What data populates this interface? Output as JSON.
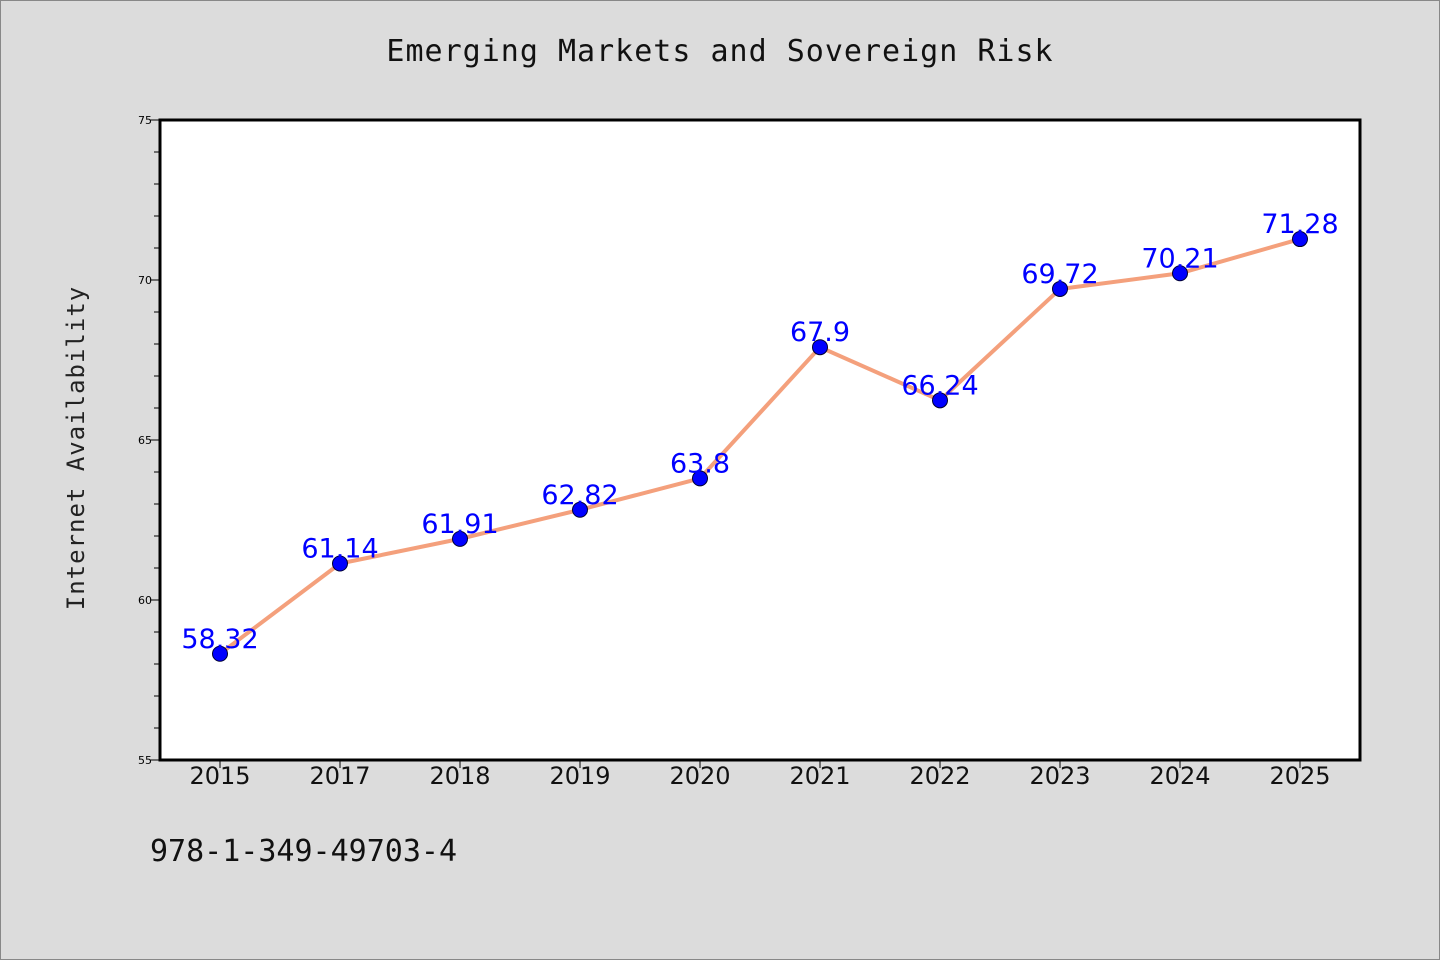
{
  "title": "Emerging Markets and Sovereign Risk",
  "footnote": "978-1-349-49703-4",
  "colors": {
    "background": "#dcdcdc",
    "plot_background": "#ffffff",
    "line": "#f4a07c",
    "marker": "#0000ff",
    "data_label": "#0000ff"
  },
  "chart_data": {
    "type": "line",
    "title": "Emerging Markets and Sovereign Risk",
    "xlabel": "",
    "ylabel": "Internet Availability",
    "categories": [
      "2015",
      "2017",
      "2018",
      "2019",
      "2020",
      "2021",
      "2022",
      "2023",
      "2024",
      "2025"
    ],
    "series": [
      {
        "values": [
          58.32,
          61.14,
          61.91,
          62.82,
          63.8,
          67.9,
          66.24,
          69.72,
          70.21,
          71.28
        ],
        "labels": [
          "58.32",
          "61.14",
          "61.91",
          "62.82",
          "63.8",
          "67.9",
          "66.24",
          "69.72",
          "70.21",
          "71.28"
        ]
      }
    ],
    "ylim": [
      55,
      75
    ],
    "yticks": [
      "55",
      "60",
      "65",
      "70",
      "75"
    ],
    "grid": false,
    "legend": "none"
  }
}
